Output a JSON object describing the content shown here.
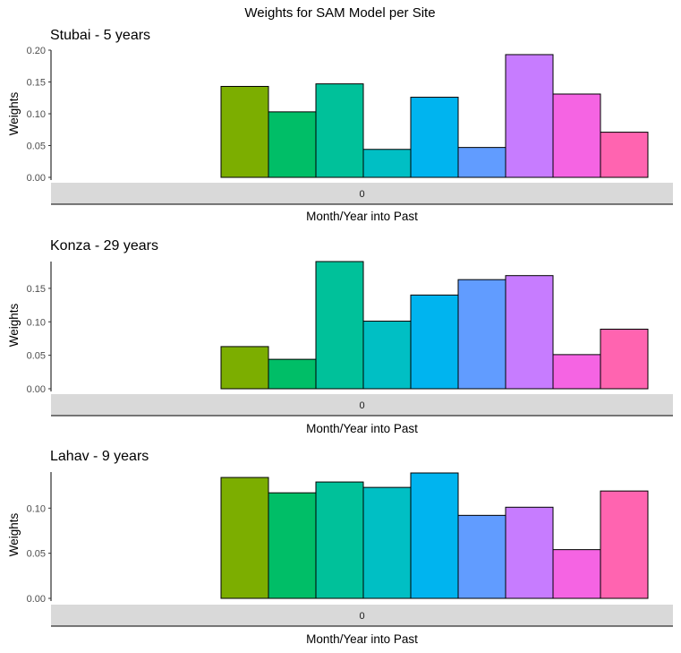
{
  "figure_title": "Weights for SAM Model per Site",
  "chart_data": [
    {
      "type": "bar",
      "title": "Stubai - 5 years",
      "xlabel": "Month/Year into Past",
      "ylabel": "Weights",
      "facet_label": "0",
      "ylim": [
        0,
        0.2
      ],
      "yticks": [
        "0.00",
        "0.05",
        "0.10",
        "0.15",
        "0.20"
      ],
      "values": [
        0,
        0,
        0,
        0.143,
        0.103,
        0.147,
        0.044,
        0.126,
        0.047,
        0.193,
        0.131,
        0.071
      ]
    },
    {
      "type": "bar",
      "title": "Konza - 29 years",
      "xlabel": "Month/Year into Past",
      "ylabel": "Weights",
      "facet_label": "0",
      "ylim": [
        0,
        0.19
      ],
      "yticks": [
        "0.00",
        "0.05",
        "0.10",
        "0.15"
      ],
      "values": [
        0,
        0,
        0,
        0.063,
        0.044,
        0.19,
        0.101,
        0.14,
        0.163,
        0.169,
        0.051,
        0.089
      ]
    },
    {
      "type": "bar",
      "title": "Lahav - 9 years",
      "xlabel": "Month/Year into Past",
      "ylabel": "Weights",
      "facet_label": "0",
      "ylim": [
        0,
        0.14
      ],
      "yticks": [
        "0.00",
        "0.05",
        "0.10"
      ],
      "values": [
        0,
        0,
        0,
        0.134,
        0.117,
        0.129,
        0.123,
        0.139,
        0.092,
        0.101,
        0.054,
        0.119
      ]
    }
  ],
  "colors": [
    "#F8766D",
    "#E18A00",
    "#BE9C00",
    "#7CAE00",
    "#00BE67",
    "#00C19A",
    "#00BFC4",
    "#00B4EF",
    "#619CFF",
    "#C77CFF",
    "#F564E3",
    "#FF64B0"
  ]
}
